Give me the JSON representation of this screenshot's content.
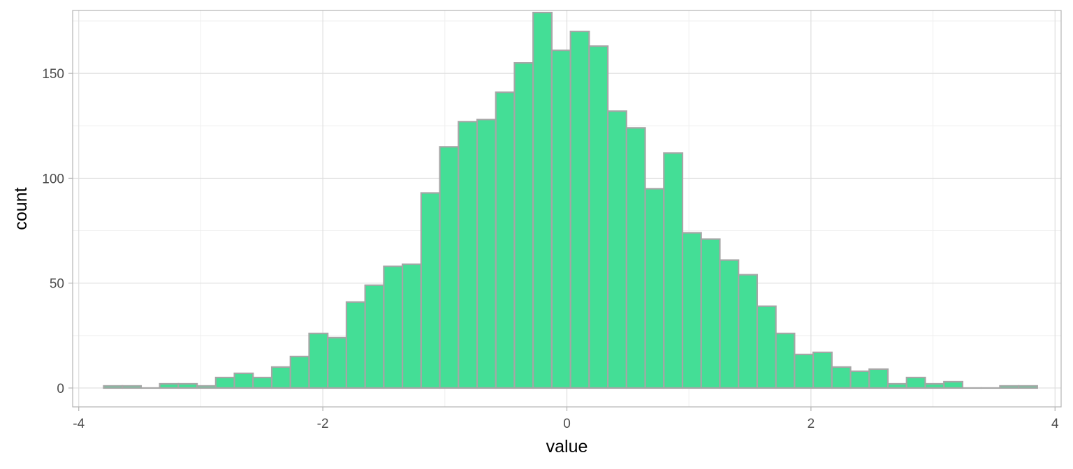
{
  "chart_data": {
    "type": "bar",
    "subtype": "histogram",
    "title": "",
    "xlabel": "value",
    "ylabel": "count",
    "xlim": [
      -4.05,
      4.05
    ],
    "ylim": [
      -9,
      180
    ],
    "x_ticks": [
      -4,
      -2,
      0,
      2,
      4
    ],
    "x_tick_labels": [
      "-4",
      "-2",
      "0",
      "2",
      "4"
    ],
    "y_ticks": [
      0,
      50,
      100,
      150
    ],
    "y_tick_labels": [
      "0",
      "50",
      "100",
      "150"
    ],
    "grid": true,
    "legend": "none",
    "bin_width": 0.1529,
    "bin_centers": [
      -3.719,
      -3.566,
      -3.413,
      -3.26,
      -3.107,
      -2.954,
      -2.801,
      -2.648,
      -2.495,
      -2.342,
      -2.189,
      -2.036,
      -1.883,
      -1.73,
      -1.577,
      -1.424,
      -1.271,
      -1.118,
      -0.965,
      -0.812,
      -0.659,
      -0.506,
      -0.353,
      -0.2,
      -0.047,
      0.106,
      0.259,
      0.412,
      0.565,
      0.718,
      0.871,
      1.024,
      1.177,
      1.33,
      1.483,
      1.636,
      1.789,
      1.942,
      2.095,
      2.248,
      2.401,
      2.554,
      2.707,
      2.86,
      3.013,
      3.166,
      3.319,
      3.472,
      3.625,
      3.778
    ],
    "values": [
      1,
      1,
      0,
      2,
      2,
      1,
      5,
      7,
      5,
      10,
      15,
      26,
      24,
      41,
      49,
      58,
      59,
      93,
      115,
      127,
      128,
      141,
      155,
      179,
      161,
      170,
      163,
      132,
      124,
      95,
      112,
      74,
      71,
      61,
      54,
      39,
      26,
      16,
      17,
      10,
      8,
      9,
      2,
      5,
      2,
      3,
      0,
      0,
      1,
      1
    ],
    "colors": {
      "fill": "#44DE96",
      "outline": "#A6A6A6",
      "panel_border": "#B3B3B3",
      "grid_major": "#DEDEDE",
      "grid_minor": "#EFEFEF",
      "tick_label": "#4D4D4D",
      "axis_title": "#000000"
    }
  }
}
